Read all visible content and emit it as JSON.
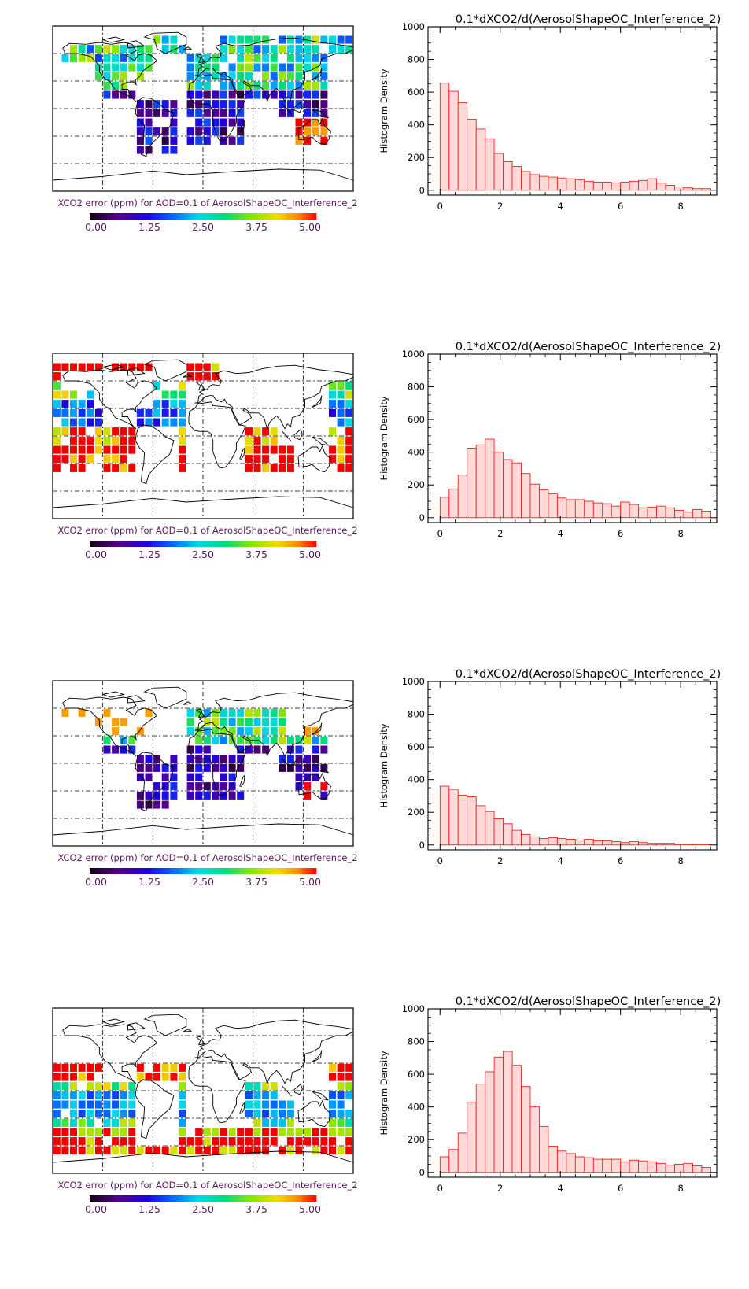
{
  "panels": [
    {
      "map": {
        "caption": "XCO2 error (ppm) for AOD=0.1 of AerosolShapeOC_Interference_2",
        "colorbar_ticks": [
          "0.00",
          "1.25",
          "2.50",
          "3.75",
          "5.00"
        ],
        "pattern": "land"
      },
      "chart": {
        "type": "bar",
        "title": "0.1*dXCO2/d(AerosolShapeOC_Interference_2)",
        "ylabel": "Histogram Density",
        "xlabel": "",
        "xlim": [
          -0.4,
          9.2
        ],
        "ylim": [
          -30,
          1000
        ],
        "xticks": [
          0,
          2,
          4,
          6,
          8
        ],
        "yticks": [
          0,
          200,
          400,
          600,
          800,
          1000
        ],
        "bin_start": 0,
        "bin_width": 0.3,
        "values": [
          655,
          605,
          535,
          435,
          375,
          315,
          225,
          175,
          145,
          115,
          95,
          85,
          80,
          75,
          70,
          65,
          55,
          50,
          50,
          45,
          50,
          55,
          60,
          70,
          45,
          30,
          20,
          15,
          10,
          10
        ],
        "bar_fill": "#ffd8d8",
        "bar_stroke": "#ee2222"
      }
    },
    {
      "map": {
        "caption": "XCO2 error (ppm) for AOD=0.1 of AerosolShapeOC_Interference_2",
        "colorbar_ticks": [
          "0.00",
          "1.25",
          "2.50",
          "3.75",
          "5.00"
        ],
        "pattern": "ocean_north"
      },
      "chart": {
        "type": "bar",
        "title": "0.1*dXCO2/d(AerosolShapeOC_Interference_2)",
        "ylabel": "Histogram Density",
        "xlabel": "",
        "xlim": [
          -0.4,
          9.2
        ],
        "ylim": [
          -30,
          1000
        ],
        "xticks": [
          0,
          2,
          4,
          6,
          8
        ],
        "yticks": [
          0,
          200,
          400,
          600,
          800,
          1000
        ],
        "bin_start": 0,
        "bin_width": 0.3,
        "values": [
          125,
          175,
          260,
          425,
          445,
          480,
          400,
          355,
          335,
          270,
          205,
          170,
          145,
          120,
          110,
          110,
          100,
          90,
          85,
          70,
          95,
          80,
          60,
          65,
          70,
          60,
          45,
          35,
          50,
          40
        ],
        "bar_fill": "#ffd8d8",
        "bar_stroke": "#ee2222"
      }
    },
    {
      "map": {
        "caption": "XCO2 error (ppm) for AOD=0.1 of AerosolShapeOC_Interference_2",
        "colorbar_ticks": [
          "0.00",
          "1.25",
          "2.50",
          "3.75",
          "5.00"
        ],
        "pattern": "tropical_land"
      },
      "chart": {
        "type": "bar",
        "title": "0.1*dXCO2/d(AerosolShapeOC_Interference_2)",
        "ylabel": "Histogram Density",
        "xlabel": "",
        "xlim": [
          -0.4,
          9.2
        ],
        "ylim": [
          -30,
          1000
        ],
        "xticks": [
          0,
          2,
          4,
          6,
          8
        ],
        "yticks": [
          0,
          200,
          400,
          600,
          800,
          1000
        ],
        "bin_start": 0,
        "bin_width": 0.3,
        "values": [
          360,
          340,
          305,
          295,
          240,
          205,
          160,
          130,
          90,
          65,
          50,
          40,
          45,
          40,
          35,
          30,
          35,
          25,
          25,
          20,
          15,
          20,
          15,
          10,
          10,
          10,
          5,
          5,
          5,
          5
        ],
        "bar_fill": "#ffd8d8",
        "bar_stroke": "#ee2222"
      }
    },
    {
      "map": {
        "caption": "XCO2 error (ppm) for AOD=0.1 of AerosolShapeOC_Interference_2",
        "colorbar_ticks": [
          "0.00",
          "1.25",
          "2.50",
          "3.75",
          "5.00"
        ],
        "pattern": "ocean_south"
      },
      "chart": {
        "type": "bar",
        "title": "0.1*dXCO2/d(AerosolShapeOC_Interference_2)",
        "ylabel": "Histogram Density",
        "xlabel": "",
        "xlim": [
          -0.4,
          9.2
        ],
        "ylim": [
          -30,
          1000
        ],
        "xticks": [
          0,
          2,
          4,
          6,
          8
        ],
        "yticks": [
          0,
          200,
          400,
          600,
          800,
          1000
        ],
        "bin_start": 0,
        "bin_width": 0.3,
        "values": [
          95,
          140,
          240,
          430,
          540,
          615,
          705,
          740,
          655,
          525,
          400,
          280,
          160,
          130,
          115,
          95,
          90,
          80,
          80,
          80,
          65,
          75,
          70,
          65,
          55,
          45,
          50,
          55,
          40,
          30
        ],
        "bar_fill": "#ffd8d8",
        "bar_stroke": "#ee2222"
      }
    }
  ]
}
